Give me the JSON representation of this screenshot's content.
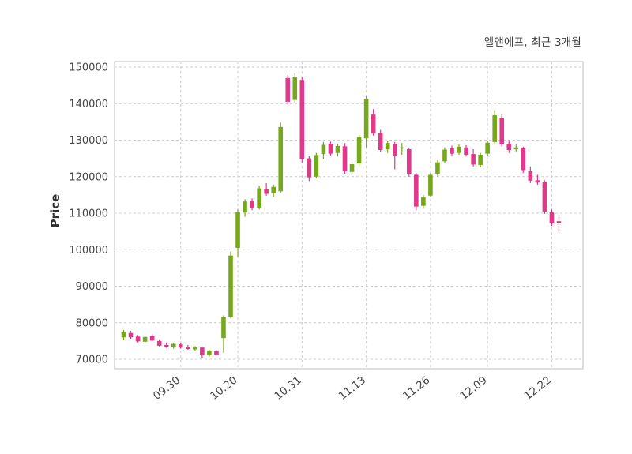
{
  "chart_data": {
    "type": "candlestick",
    "title": "엘앤에프, 최근 3개월",
    "ylabel": "Price",
    "ylim": [
      70000,
      150000
    ],
    "ytick_step": 10000,
    "yticks": [
      70000,
      80000,
      90000,
      100000,
      110000,
      120000,
      130000,
      140000,
      150000
    ],
    "xticks": [
      {
        "label": "09.30",
        "index": 8
      },
      {
        "label": "10.20",
        "index": 16
      },
      {
        "label": "10.31",
        "index": 25
      },
      {
        "label": "11.13",
        "index": 34
      },
      {
        "label": "11.26",
        "index": 43
      },
      {
        "label": "12.09",
        "index": 51
      },
      {
        "label": "12.22",
        "index": 60
      }
    ],
    "colors": {
      "up": "#76a81c",
      "down": "#e0398c",
      "grid": "#cccccc",
      "border": "#d4d4d4",
      "text": "#444444"
    },
    "grid": "dashed",
    "candles": [
      [
        76000,
        78000,
        75200,
        77400
      ],
      [
        77200,
        77800,
        75600,
        76000
      ],
      [
        76200,
        76600,
        74600,
        74900
      ],
      [
        74800,
        76400,
        74500,
        76100
      ],
      [
        76300,
        76800,
        74900,
        75100
      ],
      [
        75000,
        75400,
        73500,
        73700
      ],
      [
        73900,
        74600,
        73100,
        73400
      ],
      [
        73300,
        74500,
        72900,
        74200
      ],
      [
        74100,
        74400,
        72900,
        73200
      ],
      [
        73300,
        73900,
        72600,
        72800
      ],
      [
        72700,
        73600,
        72300,
        73400
      ],
      [
        73200,
        73400,
        70300,
        71100
      ],
      [
        71200,
        72600,
        70800,
        72400
      ],
      [
        72300,
        72500,
        71000,
        71300
      ],
      [
        75800,
        82000,
        71800,
        81600
      ],
      [
        81600,
        99500,
        81200,
        98400
      ],
      [
        100500,
        111000,
        98000,
        110300
      ],
      [
        110200,
        113800,
        109000,
        113200
      ],
      [
        113400,
        114000,
        110800,
        111300
      ],
      [
        111500,
        117500,
        111000,
        116800
      ],
      [
        116500,
        118200,
        114800,
        115300
      ],
      [
        115500,
        117800,
        114500,
        117200
      ],
      [
        116000,
        134800,
        115500,
        133600
      ],
      [
        147000,
        147900,
        139800,
        140500
      ],
      [
        141000,
        148300,
        140300,
        147400
      ],
      [
        146500,
        147200,
        123800,
        124800
      ],
      [
        125000,
        125600,
        118800,
        119800
      ],
      [
        120000,
        126500,
        119500,
        125900
      ],
      [
        126200,
        129500,
        124800,
        128700
      ],
      [
        129000,
        129600,
        125800,
        126300
      ],
      [
        126500,
        129000,
        125500,
        128400
      ],
      [
        128300,
        129200,
        120800,
        121500
      ],
      [
        121300,
        124000,
        120500,
        123400
      ],
      [
        123600,
        131500,
        123000,
        130800
      ],
      [
        130500,
        142000,
        128000,
        141300
      ],
      [
        137000,
        138500,
        131200,
        131800
      ],
      [
        132000,
        132800,
        126800,
        127300
      ],
      [
        127500,
        129800,
        126500,
        129200
      ],
      [
        129000,
        129500,
        122000,
        125600
      ],
      [
        127800,
        129200,
        126000,
        128000
      ],
      [
        127500,
        128000,
        120000,
        120800
      ],
      [
        120500,
        121000,
        110800,
        111800
      ],
      [
        112000,
        115000,
        111200,
        114400
      ],
      [
        114800,
        121000,
        114500,
        120500
      ],
      [
        120800,
        124500,
        120000,
        123900
      ],
      [
        124200,
        128000,
        123800,
        127400
      ],
      [
        127800,
        128500,
        125800,
        126300
      ],
      [
        126500,
        128800,
        126000,
        128200
      ],
      [
        128000,
        128600,
        125500,
        126000
      ],
      [
        126200,
        127500,
        122800,
        123300
      ],
      [
        123200,
        126500,
        122500,
        126000
      ],
      [
        126300,
        129800,
        125800,
        129300
      ],
      [
        129500,
        138200,
        128800,
        136800
      ],
      [
        136000,
        137000,
        128200,
        128800
      ],
      [
        129000,
        130000,
        126500,
        127300
      ],
      [
        127500,
        128800,
        126800,
        128000
      ],
      [
        127800,
        128200,
        121000,
        121800
      ],
      [
        121500,
        122800,
        118200,
        118900
      ],
      [
        119000,
        120500,
        117800,
        118400
      ],
      [
        118600,
        119000,
        109800,
        110400
      ],
      [
        110200,
        111000,
        106500,
        107200
      ],
      [
        107800,
        109000,
        104600,
        107400
      ]
    ]
  }
}
